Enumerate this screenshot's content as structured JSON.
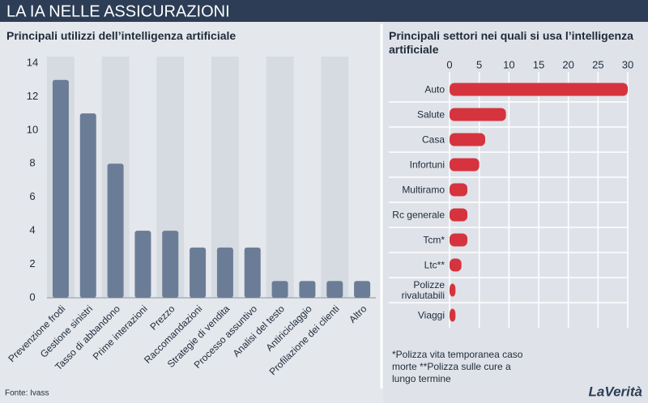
{
  "title": "LA IA NELLE ASSICURAZIONI",
  "chart_data": [
    {
      "type": "bar",
      "orientation": "vertical",
      "title": "Principali utilizzi dell’intelligenza artificiale",
      "categories": [
        "Prevenzione frodi",
        "Gestione sinistri",
        "Tasso di abbandono",
        "Prime interazioni",
        "Prezzo",
        "Raccomandazioni",
        "Strategie di vendita",
        "Processo assuntivo",
        "Analisi del testo",
        "Antiriciclaggio",
        "Profilazione dei clienti",
        "Altro"
      ],
      "values": [
        13,
        11,
        8,
        4,
        4,
        3,
        3,
        3,
        1,
        1,
        1,
        1
      ],
      "color": "#6b7d96",
      "ylim": [
        0,
        14
      ],
      "yticks": [
        0,
        2,
        4,
        6,
        8,
        10,
        12,
        14
      ],
      "grid": false
    },
    {
      "type": "bar",
      "orientation": "horizontal",
      "title": "Principali settori nei quali si usa l’intelligenza artificiale",
      "categories": [
        "Auto",
        "Salute",
        "Casa",
        "Infortuni",
        "Multiramo",
        "Rc generale",
        "Tcm*",
        "Ltc**",
        "Polizze rivalutabili",
        "Viaggi"
      ],
      "values": [
        30,
        9.5,
        6,
        5,
        3,
        3,
        3,
        2,
        1,
        1
      ],
      "color": "#d5343f",
      "xlim": [
        0,
        30
      ],
      "xticks": [
        0,
        5,
        10,
        15,
        20,
        25,
        30
      ],
      "grid": true,
      "footnote": "*Polizza vita temporanea caso morte **Polizza sulle cure a lungo termine"
    }
  ],
  "source": "Fonte: Ivass",
  "brand": "LaVerità"
}
